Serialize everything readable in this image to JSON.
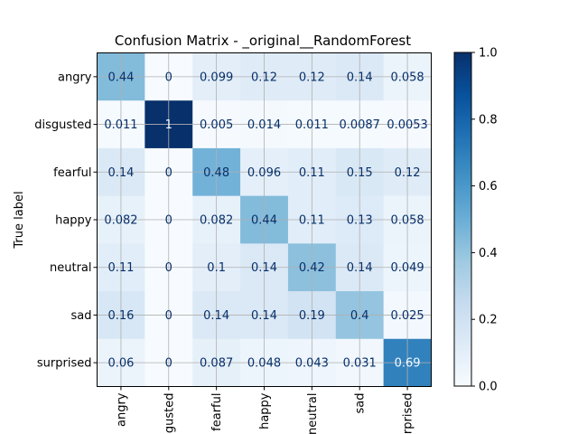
{
  "chart_data": {
    "type": "heatmap",
    "title": "Confusion Matrix - _original__RandomForest",
    "ylabel": "True label",
    "xlabel": "",
    "row_labels": [
      "angry",
      "disgusted",
      "fearful",
      "happy",
      "neutral",
      "sad",
      "surprised"
    ],
    "col_labels": [
      "angry",
      "disgusted",
      "fearful",
      "happy",
      "neutral",
      "sad",
      "surprised"
    ],
    "col_labels_visible": [
      "angry",
      "gusted",
      "fearful",
      "happy",
      "neutral",
      "sad",
      "rprised"
    ],
    "values": [
      [
        0.44,
        0,
        0.099,
        0.12,
        0.12,
        0.14,
        0.058
      ],
      [
        0.011,
        1,
        0.005,
        0.014,
        0.011,
        0.0087,
        0.0053
      ],
      [
        0.14,
        0,
        0.48,
        0.096,
        0.11,
        0.15,
        0.12
      ],
      [
        0.082,
        0,
        0.082,
        0.44,
        0.11,
        0.13,
        0.058
      ],
      [
        0.11,
        0,
        0.1,
        0.14,
        0.42,
        0.14,
        0.049
      ],
      [
        0.16,
        0,
        0.14,
        0.14,
        0.19,
        0.4,
        0.025
      ],
      [
        0.06,
        0,
        0.087,
        0.048,
        0.043,
        0.031,
        0.69
      ]
    ],
    "cell_labels": [
      [
        "0.44",
        "0",
        "0.099",
        "0.12",
        "0.12",
        "0.14",
        "0.058"
      ],
      [
        "0.011",
        "1",
        "0.005",
        "0.014",
        "0.011",
        "0.0087",
        "0.0053"
      ],
      [
        "0.14",
        "0",
        "0.48",
        "0.096",
        "0.11",
        "0.15",
        "0.12"
      ],
      [
        "0.082",
        "0",
        "0.082",
        "0.44",
        "0.11",
        "0.13",
        "0.058"
      ],
      [
        "0.11",
        "0",
        "0.1",
        "0.14",
        "0.42",
        "0.14",
        "0.049"
      ],
      [
        "0.16",
        "0",
        "0.14",
        "0.14",
        "0.19",
        "0.4",
        "0.025"
      ],
      [
        "0.06",
        "0",
        "0.087",
        "0.048",
        "0.043",
        "0.031",
        "0.69"
      ]
    ],
    "colormap": "Blues",
    "color_range": [
      0.0,
      1.0
    ],
    "colorbar_ticks": [
      "0.0",
      "0.2",
      "0.4",
      "0.6",
      "0.8",
      "1.0"
    ],
    "grid": true,
    "x_tick_rotation": "vertical"
  }
}
